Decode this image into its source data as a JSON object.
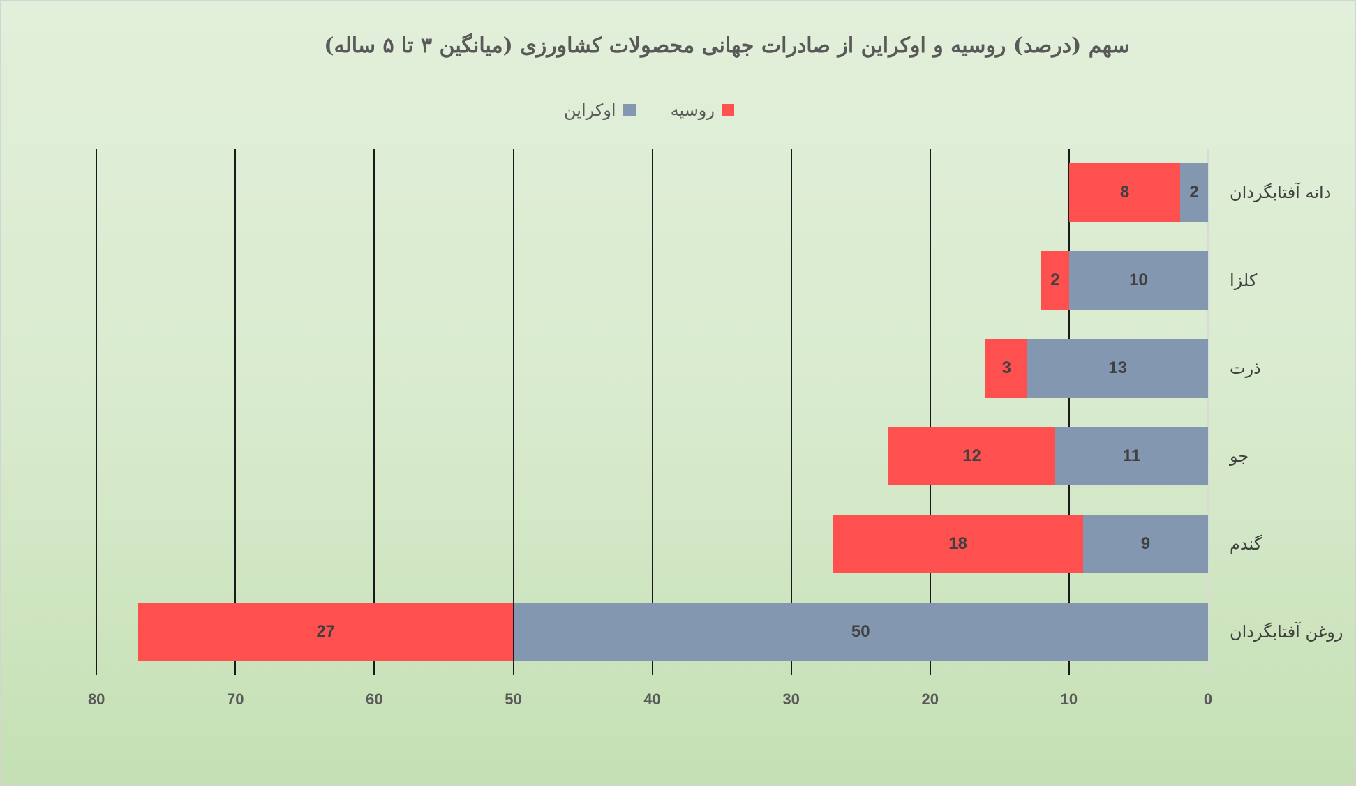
{
  "chart_data": {
    "type": "bar",
    "orientation": "horizontal-stacked",
    "title": "سهم (درصد) روسیه و اوکراین از صادرات جهانی محصولات کشاورزی (میانگین ۳ تا ۵ ساله)",
    "categories": [
      "دانه آفتابگردان",
      "کلزا",
      "ذرت",
      "جو",
      "گندم",
      "روغن آفتابگردان"
    ],
    "series": [
      {
        "name": "اوکراین",
        "color": "#8497b0",
        "values": [
          2,
          10,
          13,
          11,
          9,
          50
        ]
      },
      {
        "name": "روسیه",
        "color": "#ff5050",
        "values": [
          8,
          2,
          3,
          12,
          18,
          27
        ]
      }
    ],
    "xlabel": "",
    "ylabel": "",
    "xlim": [
      0,
      80
    ],
    "x_reversed": true,
    "xticks": [
      "80",
      "70",
      "60",
      "50",
      "40",
      "30",
      "20",
      "10",
      "0"
    ],
    "grid": true,
    "legend_position": "top"
  },
  "legend": [
    {
      "label": "روسیه",
      "color": "#ff5050"
    },
    {
      "label": "اوکراین",
      "color": "#8497b0"
    }
  ],
  "colors": {
    "russia": "#ff5050",
    "ukraine": "#8497b0",
    "background_top": "#e2efda",
    "background_bottom": "#c5e0b4"
  }
}
